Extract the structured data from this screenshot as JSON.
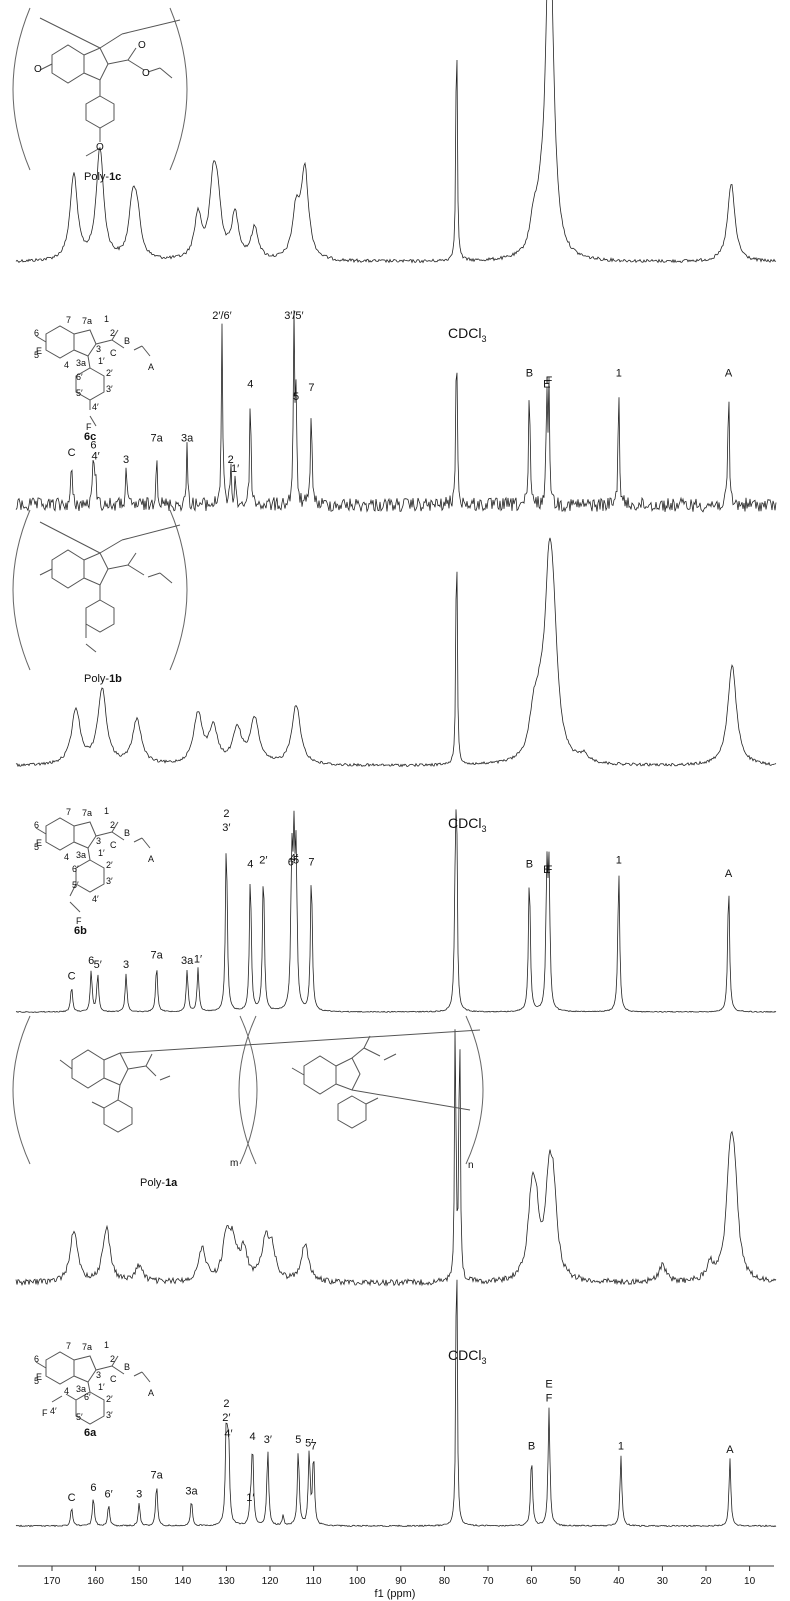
{
  "chart_data": [
    {
      "type": "line",
      "panel": "poly-1c",
      "compound_label_prefix": "Poly-",
      "compound_label_bold": "1c",
      "x_unit": "ppm",
      "xlim": [
        170,
        3
      ],
      "x_reversed": true,
      "peaks": [
        {
          "x": 165.0,
          "y": 0.33
        },
        {
          "x": 159.0,
          "y": 0.43
        },
        {
          "x": 151.5,
          "y": 0.2
        },
        {
          "x": 150.5,
          "y": 0.15
        },
        {
          "x": 136.5,
          "y": 0.17
        },
        {
          "x": 133.0,
          "y": 0.27
        },
        {
          "x": 132.0,
          "y": 0.18
        },
        {
          "x": 128.0,
          "y": 0.17
        },
        {
          "x": 123.5,
          "y": 0.12
        },
        {
          "x": 114.0,
          "y": 0.18
        },
        {
          "x": 112.0,
          "y": 0.34
        },
        {
          "x": 77.2,
          "y": 1.0
        },
        {
          "x": 59.5,
          "y": 0.12
        },
        {
          "x": 58.0,
          "y": 0.1
        },
        {
          "x": 56.0,
          "y": 0.98
        },
        {
          "x": 55.5,
          "y": 0.4
        },
        {
          "x": 14.2,
          "y": 0.3
        }
      ]
    },
    {
      "type": "line",
      "panel": "6c",
      "compound_label": "6c",
      "solvent_label": "CDCl",
      "solvent_sub": "3",
      "xlim": [
        170,
        3
      ],
      "peaks": [
        {
          "x": 165.5,
          "y": 0.24,
          "label": "C"
        },
        {
          "x": 160.5,
          "y": 0.28,
          "label": "6"
        },
        {
          "x": 160.0,
          "y": 0.22,
          "label": "4′"
        },
        {
          "x": 153.0,
          "y": 0.2,
          "label": "3"
        },
        {
          "x": 146.0,
          "y": 0.32,
          "label": "7a"
        },
        {
          "x": 139.0,
          "y": 0.32,
          "label": "3a"
        },
        {
          "x": 131.0,
          "y": 1.0,
          "label": "2′/6′"
        },
        {
          "x": 129.0,
          "y": 0.2,
          "label": "2"
        },
        {
          "x": 128.0,
          "y": 0.15,
          "label": "1′"
        },
        {
          "x": 124.5,
          "y": 0.62,
          "label": "4"
        },
        {
          "x": 114.5,
          "y": 1.0,
          "label": "3′/5′"
        },
        {
          "x": 114.0,
          "y": 0.55,
          "label": "5"
        },
        {
          "x": 110.5,
          "y": 0.6,
          "label": "7"
        },
        {
          "x": 77.2,
          "y": 1.0
        },
        {
          "x": 60.5,
          "y": 0.68,
          "label": "B"
        },
        {
          "x": 56.5,
          "y": 0.62,
          "label": "E"
        },
        {
          "x": 56.0,
          "y": 0.64,
          "label": "F"
        },
        {
          "x": 40.0,
          "y": 0.68,
          "label": "1"
        },
        {
          "x": 14.8,
          "y": 0.68,
          "label": "A"
        }
      ]
    },
    {
      "type": "line",
      "panel": "poly-1b",
      "compound_label_prefix": "Poly-",
      "compound_label_bold": "1b",
      "xlim": [
        170,
        3
      ],
      "peaks": [
        {
          "x": 164.5,
          "y": 0.22
        },
        {
          "x": 158.5,
          "y": 0.3
        },
        {
          "x": 150.5,
          "y": 0.18
        },
        {
          "x": 136.5,
          "y": 0.2
        },
        {
          "x": 133.0,
          "y": 0.14
        },
        {
          "x": 127.5,
          "y": 0.14
        },
        {
          "x": 123.5,
          "y": 0.18
        },
        {
          "x": 114.0,
          "y": 0.24
        },
        {
          "x": 77.2,
          "y": 1.0
        },
        {
          "x": 59.5,
          "y": 0.16
        },
        {
          "x": 58.0,
          "y": 0.14
        },
        {
          "x": 56.0,
          "y": 0.62
        },
        {
          "x": 55.0,
          "y": 0.38
        },
        {
          "x": 48.0,
          "y": 0.03
        },
        {
          "x": 14.0,
          "y": 0.4
        }
      ]
    },
    {
      "type": "line",
      "panel": "6b",
      "compound_label": "6b",
      "solvent_label": "CDCl",
      "solvent_sub": "3",
      "xlim": [
        170,
        3
      ],
      "peaks": [
        {
          "x": 165.5,
          "y": 0.14,
          "label": "C"
        },
        {
          "x": 161.0,
          "y": 0.22,
          "label": "6"
        },
        {
          "x": 159.5,
          "y": 0.2,
          "label": "5′"
        },
        {
          "x": 153.0,
          "y": 0.2,
          "label": "3"
        },
        {
          "x": 146.0,
          "y": 0.25,
          "label": "7a"
        },
        {
          "x": 139.0,
          "y": 0.22,
          "label": "3a"
        },
        {
          "x": 136.5,
          "y": 0.23,
          "label": "1′"
        },
        {
          "x": 130.0,
          "y": 0.92,
          "label": "2\n3′"
        },
        {
          "x": 124.5,
          "y": 0.73,
          "label": "4"
        },
        {
          "x": 121.5,
          "y": 0.75,
          "label": "2′"
        },
        {
          "x": 115.0,
          "y": 0.74,
          "label": "6′"
        },
        {
          "x": 114.5,
          "y": 0.76,
          "label": "4′"
        },
        {
          "x": 114.0,
          "y": 0.75,
          "label": "5"
        },
        {
          "x": 110.5,
          "y": 0.74,
          "label": "7"
        },
        {
          "x": 77.2,
          "y": 1.0
        },
        {
          "x": 77.5,
          "y": 0.6
        },
        {
          "x": 60.5,
          "y": 0.73,
          "label": "B"
        },
        {
          "x": 56.5,
          "y": 0.7,
          "label": "E"
        },
        {
          "x": 56.0,
          "y": 0.7,
          "label": "F"
        },
        {
          "x": 40.0,
          "y": 0.75,
          "label": "1"
        },
        {
          "x": 14.8,
          "y": 0.68,
          "label": "A"
        }
      ]
    },
    {
      "type": "line",
      "panel": "poly-1a",
      "compound_label_prefix": "Poly-",
      "compound_label_bold": "1a",
      "subscripts": [
        "m",
        "n"
      ],
      "xlim": [
        170,
        3
      ],
      "peaks": [
        {
          "x": 165.0,
          "y": 0.19
        },
        {
          "x": 157.5,
          "y": 0.2
        },
        {
          "x": 150.0,
          "y": 0.06
        },
        {
          "x": 135.5,
          "y": 0.12
        },
        {
          "x": 130.0,
          "y": 0.15
        },
        {
          "x": 128.5,
          "y": 0.13
        },
        {
          "x": 126.0,
          "y": 0.11
        },
        {
          "x": 121.0,
          "y": 0.15
        },
        {
          "x": 119.5,
          "y": 0.1
        },
        {
          "x": 112.0,
          "y": 0.14
        },
        {
          "x": 77.5,
          "y": 1.0
        },
        {
          "x": 76.5,
          "y": 1.0
        },
        {
          "x": 60.0,
          "y": 0.25
        },
        {
          "x": 59.0,
          "y": 0.2
        },
        {
          "x": 56.0,
          "y": 0.3
        },
        {
          "x": 55.0,
          "y": 0.26
        },
        {
          "x": 30.0,
          "y": 0.06
        },
        {
          "x": 19.0,
          "y": 0.06
        },
        {
          "x": 14.5,
          "y": 0.36
        },
        {
          "x": 13.5,
          "y": 0.32
        }
      ]
    },
    {
      "type": "line",
      "panel": "6a",
      "compound_label": "6a",
      "solvent_label": "CDCl",
      "solvent_sub": "3",
      "xlim": [
        170,
        3
      ],
      "peaks": [
        {
          "x": 165.5,
          "y": 0.06,
          "label": "C"
        },
        {
          "x": 160.5,
          "y": 0.09,
          "label": "6"
        },
        {
          "x": 157.0,
          "y": 0.07,
          "label": "6′"
        },
        {
          "x": 150.0,
          "y": 0.07,
          "label": "3"
        },
        {
          "x": 146.0,
          "y": 0.13,
          "label": "7a"
        },
        {
          "x": 138.0,
          "y": 0.08,
          "label": "3a"
        },
        {
          "x": 130.0,
          "y": 0.31,
          "label": "2\n2′"
        },
        {
          "x": 129.5,
          "y": 0.26,
          "label": "4′"
        },
        {
          "x": 124.5,
          "y": 0.06,
          "label": "1′"
        },
        {
          "x": 124.0,
          "y": 0.25,
          "label": "4"
        },
        {
          "x": 120.5,
          "y": 0.24,
          "label": "3′"
        },
        {
          "x": 117.0,
          "y": 0.03
        },
        {
          "x": 113.5,
          "y": 0.24,
          "label": "5"
        },
        {
          "x": 111.0,
          "y": 0.23,
          "label": "5′"
        },
        {
          "x": 110.0,
          "y": 0.22,
          "label": "7"
        },
        {
          "x": 77.2,
          "y": 1.0
        },
        {
          "x": 60.0,
          "y": 0.22,
          "label": "B"
        },
        {
          "x": 56.0,
          "y": 0.37,
          "label": "E\nF"
        },
        {
          "x": 39.5,
          "y": 0.22,
          "label": "1"
        },
        {
          "x": 14.5,
          "y": 0.21,
          "label": "A"
        }
      ]
    }
  ],
  "axis": {
    "ticks": [
      170,
      160,
      150,
      140,
      130,
      120,
      110,
      100,
      90,
      80,
      70,
      60,
      50,
      40,
      30,
      20,
      10
    ],
    "xlabel": "f1 (ppm)"
  },
  "structures": {
    "6c": [
      "7",
      "7a",
      "1",
      "6",
      "2",
      "E",
      "5",
      "3a",
      "3",
      "4",
      "1′",
      "C",
      "B",
      "A",
      "6′",
      "2′",
      "5′",
      "3′",
      "4′",
      "F"
    ],
    "6b": [
      "7",
      "7a",
      "1",
      "6",
      "2",
      "E",
      "5",
      "3a",
      "3",
      "4",
      "1′",
      "C",
      "B",
      "A",
      "6′",
      "2′",
      "5′",
      "3′",
      "4′",
      "F"
    ],
    "6a": [
      "7",
      "7a",
      "1",
      "6",
      "2",
      "E",
      "5",
      "3a",
      "3",
      "4",
      "1′",
      "C",
      "B",
      "A",
      "6′",
      "2′",
      "5′",
      "3′",
      "4′",
      "F"
    ]
  }
}
